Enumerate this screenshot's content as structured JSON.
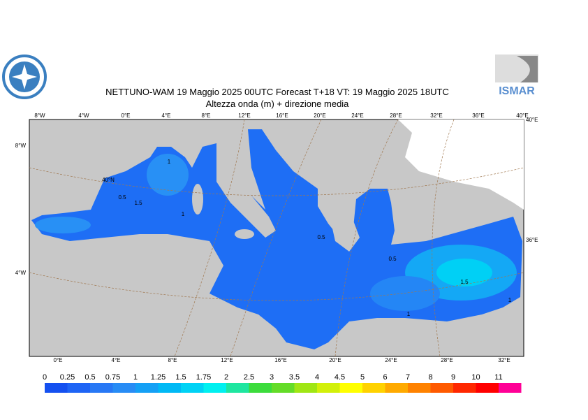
{
  "header": {
    "title": "NETTUNO-WAM  19   Maggio  2025 00UTC Forecast T+18 VT: 19   Maggio  2025 18UTC",
    "subtitle": "Altezza onda (m) + direzione media",
    "logo_right": "ISMAR"
  },
  "map": {
    "top_labels": [
      "8°W",
      "4°W",
      "0°E",
      "4°E",
      "8°E",
      "12°E",
      "16°E",
      "20°E",
      "24°E",
      "28°E",
      "32°E",
      "36°E",
      "40°E"
    ],
    "bottom_labels": [
      "0°E",
      "4°E",
      "8°E",
      "12°E",
      "16°E",
      "20°E",
      "24°E",
      "28°E",
      "32°E"
    ],
    "left_labels": [
      "8°W",
      "4°W"
    ],
    "right_labels": [
      "40°E",
      "36°E"
    ],
    "contour_labels": [
      "40°N",
      "0.5",
      "1.5",
      "1",
      "1",
      "0.5",
      "0.5",
      "1.5",
      "1",
      "1"
    ]
  },
  "colorbar": {
    "labels": [
      "0",
      "0.25",
      "0.5",
      "0.75",
      "1",
      "1.25",
      "1.5",
      "1.75",
      "2",
      "2.5",
      "3",
      "3.5",
      "4",
      "4.5",
      "5",
      "6",
      "7",
      "8",
      "9",
      "10",
      "11"
    ],
    "colors": [
      "#1450f0",
      "#1e64f5",
      "#2878f5",
      "#288cf5",
      "#14a0f5",
      "#00b9f5",
      "#00d2f5",
      "#00f0f0",
      "#1ee6a0",
      "#3cdc3c",
      "#64dc28",
      "#a0e614",
      "#d2f00a",
      "#ffff00",
      "#ffd200",
      "#ffaa00",
      "#ff8200",
      "#ff5a00",
      "#ff2800",
      "#ff0000",
      "#ff0096"
    ]
  }
}
